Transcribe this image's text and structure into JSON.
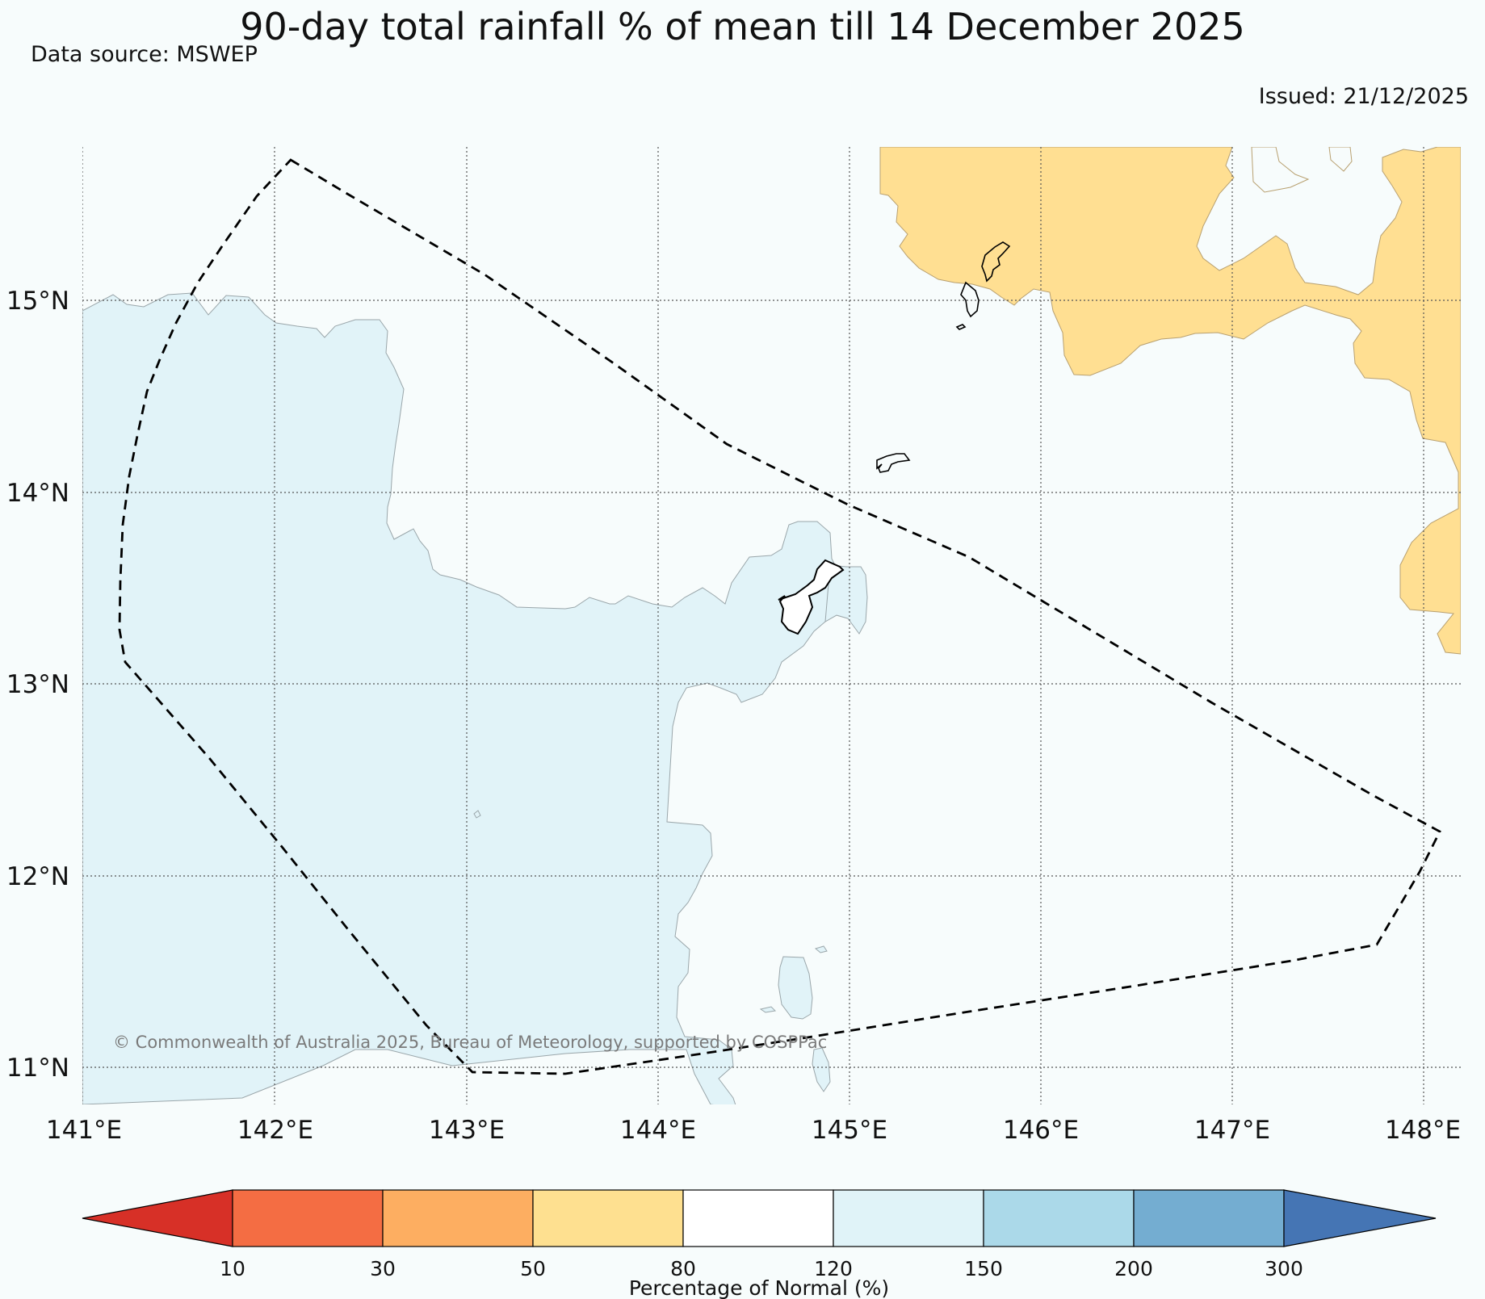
{
  "header": {
    "title": "90-day total rainfall % of mean till 14 December 2025",
    "source": "Data source: MSWEP",
    "issued": "Issued: 21/12/2025"
  },
  "map": {
    "lon_range": [
      141,
      148.2
    ],
    "lat_range": [
      10.8,
      15.8
    ],
    "lon_ticks": [
      "141°E",
      "142°E",
      "143°E",
      "144°E",
      "145°E",
      "146°E",
      "147°E",
      "148°E"
    ],
    "lat_ticks": [
      "11°N",
      "12°N",
      "13°N",
      "14°N",
      "15°N"
    ],
    "credit": "© Commonwealth of Australia 2025, Bureau of Meteorology, supported by COSPPac",
    "colors": {
      "background": "#f7fcfc",
      "wet": "#e1f3f8",
      "dry": "#ffdf92",
      "grid": "#555555",
      "outline": "#000000"
    }
  },
  "colorbar": {
    "label": "Percentage of Normal (%)",
    "ticks": [
      "10",
      "30",
      "50",
      "80",
      "120",
      "150",
      "200",
      "300"
    ],
    "colors": [
      "#d73027",
      "#f46d43",
      "#fdae61",
      "#fee090",
      "#ffffff",
      "#e0f3f8",
      "#abd9e9",
      "#74add1",
      "#4575b4"
    ]
  }
}
